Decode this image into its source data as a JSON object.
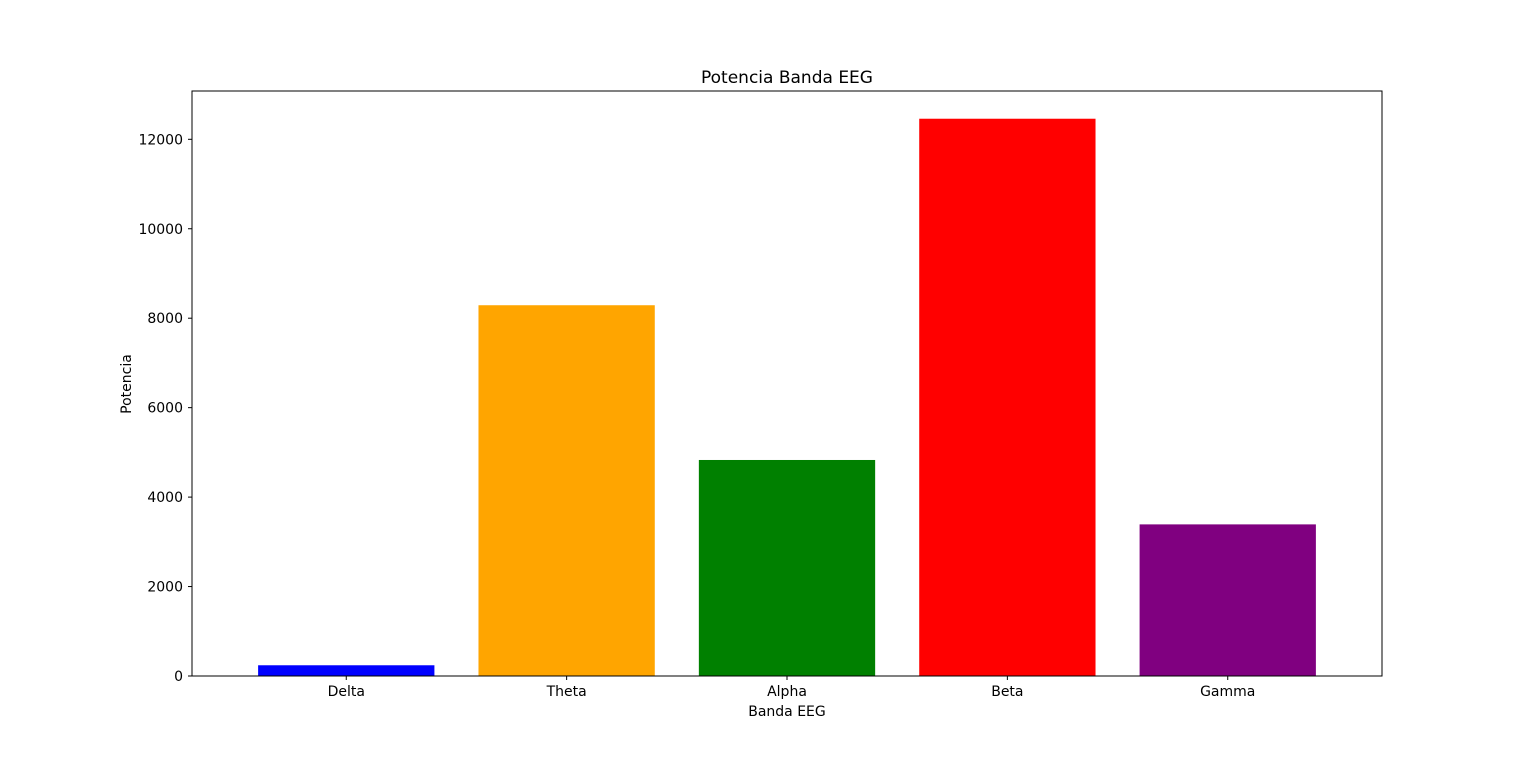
{
  "chart_data": {
    "type": "bar",
    "title": "Potencia Banda EEG",
    "xlabel": "Banda EEG",
    "ylabel": "Potencia",
    "categories": [
      "Delta",
      "Theta",
      "Alpha",
      "Beta",
      "Gamma"
    ],
    "values": [
      240,
      8290,
      4830,
      12460,
      3390
    ],
    "colors": [
      "#0000ff",
      "#ffa500",
      "#008000",
      "#ff0000",
      "#800080"
    ],
    "ylim": [
      0,
      13080
    ],
    "yticks": [
      0,
      2000,
      4000,
      6000,
      8000,
      10000,
      12000
    ],
    "ytick_labels": [
      "0",
      "2000",
      "4000",
      "6000",
      "8000",
      "10000",
      "12000"
    ],
    "grid": false,
    "legend": "none"
  }
}
